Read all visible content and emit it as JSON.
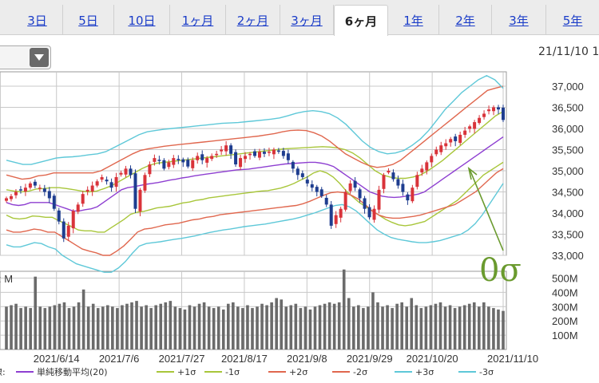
{
  "tabs": [
    {
      "label": "3日",
      "active": false
    },
    {
      "label": "5日",
      "active": false
    },
    {
      "label": "10日",
      "active": false
    },
    {
      "label": "1ヶ月",
      "active": false
    },
    {
      "label": "2ヶ月",
      "active": false
    },
    {
      "label": "3ヶ月",
      "active": false
    },
    {
      "label": "6ヶ月",
      "active": true
    },
    {
      "label": "1年",
      "active": false
    },
    {
      "label": "2年",
      "active": false
    },
    {
      "label": "3年",
      "active": false
    },
    {
      "label": "5年",
      "active": false
    }
  ],
  "date_stamp": "21/11/10 1",
  "volume_unit_label": ": M",
  "legend_prefix": "線:",
  "annotation": "0σ",
  "colors": {
    "up": "#d9333a",
    "down": "#1e3d8f",
    "sma": "#8e3fd1",
    "p1": "#a8c63a",
    "m1": "#a8c63a",
    "p2": "#e0674e",
    "m2": "#e0674e",
    "p3": "#5ec8d8",
    "m3": "#5ec8d8",
    "volume": "#6b6b6b",
    "grid": "#c8c8c8",
    "annotation": "#6a9a2e"
  },
  "chart_data": {
    "type": "candlestick",
    "price_ylim": [
      33000,
      37200
    ],
    "price_ticks": [
      "37,000",
      "36,500",
      "36,000",
      "35,500",
      "35,000",
      "34,500",
      "34,000",
      "33,500",
      "33,000"
    ],
    "price_tick_values": [
      37000,
      36500,
      36000,
      35500,
      35000,
      34500,
      34000,
      33500,
      33000
    ],
    "volume_ylim": [
      0,
      620
    ],
    "volume_ticks": [
      "500M",
      "400M",
      "300M",
      "200M",
      "100M"
    ],
    "volume_tick_values": [
      500,
      400,
      300,
      200,
      100
    ],
    "x_labels": [
      "2021/6/14",
      "2021/7/6",
      "2021/7/27",
      "2021/8/17",
      "2021/9/8",
      "2021/9/29",
      "2021/10/20",
      "2021/11/10"
    ],
    "x_label_index": [
      12,
      27,
      42,
      57,
      72,
      87,
      102,
      119
    ],
    "closes": [
      34350,
      34400,
      34500,
      34550,
      34600,
      34700,
      34650,
      34600,
      34500,
      34350,
      34100,
      33800,
      33400,
      33700,
      34050,
      34200,
      34450,
      34550,
      34650,
      34750,
      34850,
      34750,
      34600,
      34850,
      34950,
      35050,
      34900,
      34100,
      34550,
      34900,
      35150,
      35300,
      35250,
      35050,
      35200,
      35300,
      35250,
      35200,
      35100,
      35250,
      35350,
      35250,
      35300,
      35350,
      35400,
      35500,
      35600,
      35400,
      35150,
      35300,
      35350,
      35400,
      35350,
      35450,
      35400,
      35450,
      35500,
      35450,
      35350,
      35250,
      35050,
      34900,
      34850,
      34700,
      34600,
      34500,
      34400,
      34200,
      33700,
      33950,
      34100,
      34500,
      34700,
      34600,
      34350,
      34100,
      33900,
      34100,
      34550,
      34900,
      35000,
      34800,
      34650,
      34500,
      34300,
      34600,
      34900,
      35050,
      35200,
      35350,
      35500,
      35600,
      35650,
      35750,
      35700,
      35850,
      35950,
      36050,
      36150,
      36250,
      36350,
      36450,
      36500,
      36450,
      36200
    ],
    "volumes": [
      300,
      310,
      320,
      290,
      300,
      290,
      510,
      300,
      290,
      300,
      310,
      320,
      330,
      290,
      300,
      330,
      420,
      300,
      320,
      290,
      300,
      310,
      300,
      290,
      310,
      320,
      330,
      340,
      300,
      310,
      290,
      310,
      320,
      330,
      340,
      300,
      290,
      280,
      310,
      300,
      320,
      330,
      300,
      290,
      300,
      280,
      320,
      330,
      300,
      290,
      310,
      290,
      300,
      320,
      310,
      330,
      360,
      350,
      300,
      310,
      320,
      290,
      300,
      280,
      300,
      310,
      320,
      330,
      320,
      330,
      560,
      360,
      300,
      310,
      290,
      300,
      400,
      330,
      300,
      310,
      290,
      320,
      330,
      300,
      360,
      310,
      290,
      300,
      310,
      320,
      330,
      300,
      310,
      290,
      300,
      310,
      320,
      330,
      300,
      330,
      300,
      290,
      280,
      270
    ],
    "series": [
      {
        "name": "単純移動平均(20)",
        "key": "sma",
        "values": [
          34250,
          34200,
          34180,
          34200,
          34250,
          34250,
          34250,
          34250,
          34200,
          34150,
          34100,
          34050,
          34050,
          34080,
          34100,
          34150,
          34250,
          34350,
          34450,
          34550,
          34600,
          34620,
          34650,
          34680,
          34700,
          34720,
          34750,
          34780,
          34800,
          34830,
          34850,
          34880,
          34900,
          34920,
          34940,
          34960,
          34980,
          35000,
          35020,
          35030,
          35040,
          35060,
          35080,
          35100,
          35120,
          35140,
          35160,
          35170,
          35180,
          35190,
          35200,
          35200,
          35180,
          35150,
          35100,
          35000,
          34900,
          34800,
          34700,
          34600,
          34500,
          34450,
          34400,
          34380,
          34370,
          34380,
          34400,
          34420,
          34450,
          34500,
          34600,
          34700,
          34800,
          34900,
          35000,
          35100,
          35200,
          35300,
          35400,
          35500,
          35600,
          35700,
          35800
        ]
      },
      {
        "name": "+1σ",
        "key": "p1",
        "values": [
          34550,
          34520,
          34500,
          34520,
          34570,
          34580,
          34600,
          34600,
          34580,
          34550,
          34520,
          34500,
          34520,
          34580,
          34650,
          34750,
          34850,
          34950,
          35050,
          35130,
          35180,
          35200,
          35220,
          35240,
          35260,
          35280,
          35300,
          35320,
          35340,
          35360,
          35380,
          35400,
          35420,
          35440,
          35460,
          35480,
          35500,
          35520,
          35530,
          35540,
          35550,
          35560,
          35570,
          35560,
          35540,
          35500,
          35420,
          35300,
          35150,
          35000,
          34900,
          34850,
          34820,
          34820,
          34850,
          34900,
          35000,
          35120,
          35250,
          35400,
          35550,
          35700,
          35850,
          36000,
          36150,
          36300,
          36400
        ]
      },
      {
        "name": "-1σ",
        "key": "m1",
        "values": [
          33950,
          33880,
          33860,
          33880,
          33930,
          33920,
          33900,
          33900,
          33820,
          33750,
          33680,
          33600,
          33580,
          33580,
          33550,
          33550,
          33650,
          33750,
          33850,
          33970,
          34020,
          34040,
          34080,
          34120,
          34140,
          34160,
          34200,
          34240,
          34260,
          34300,
          34320,
          34360,
          34380,
          34400,
          34420,
          34440,
          34460,
          34480,
          34500,
          34520,
          34530,
          34560,
          34590,
          34640,
          34700,
          34780,
          34850,
          34950,
          35000,
          34950,
          34850,
          34700,
          34520,
          34380,
          34250,
          34150,
          34050,
          33950,
          33850,
          33780,
          33720,
          33700,
          33720,
          33760,
          33800,
          33900,
          34000,
          34100,
          34200,
          34300,
          34450,
          34600,
          34750,
          34900,
          35000,
          35100,
          35200
        ]
      },
      {
        "name": "+2σ",
        "key": "p2",
        "values": [
          34900,
          34850,
          34800,
          34820,
          34880,
          34900,
          34950,
          34950,
          34950,
          34950,
          34950,
          34950,
          35000,
          35100,
          35200,
          35300,
          35400,
          35480,
          35520,
          35550,
          35580,
          35600,
          35620,
          35640,
          35660,
          35680,
          35700,
          35720,
          35740,
          35760,
          35780,
          35800,
          35820,
          35850,
          35880,
          35920,
          35950,
          35960,
          35950,
          35900,
          35820,
          35700,
          35550,
          35400,
          35300,
          35200,
          35120,
          35080,
          35100,
          35150,
          35250,
          35400,
          35550,
          35700,
          35850,
          36000,
          36150,
          36300,
          36450,
          36600,
          36750,
          36900,
          36950,
          37000
        ]
      },
      {
        "name": "-2σ",
        "key": "m2",
        "values": [
          33600,
          33550,
          33550,
          33580,
          33620,
          33600,
          33550,
          33550,
          33450,
          33350,
          33250,
          33150,
          33100,
          33060,
          33000,
          33000,
          33100,
          33220,
          33380,
          33550,
          33620,
          33640,
          33680,
          33720,
          33740,
          33760,
          33800,
          33840,
          33860,
          33900,
          33920,
          33960,
          33980,
          34000,
          34020,
          34040,
          34060,
          34080,
          34100,
          34120,
          34140,
          34160,
          34180,
          34220,
          34280,
          34350,
          34420,
          34480,
          34500,
          34480,
          34420,
          34330,
          34200,
          34050,
          33950,
          33900,
          33880,
          33880,
          33900,
          33920,
          33950,
          34000,
          34050,
          34100,
          34150,
          34200,
          34300,
          34400,
          34500,
          34650,
          34800,
          34950,
          35050
        ]
      },
      {
        "name": "+3σ",
        "key": "p3",
        "values": [
          35250,
          35200,
          35150,
          35150,
          35200,
          35250,
          35300,
          35320,
          35330,
          35350,
          35380,
          35400,
          35450,
          35550,
          35650,
          35750,
          35850,
          35920,
          35950,
          35980,
          36000,
          36020,
          36040,
          36060,
          36080,
          36100,
          36120,
          36130,
          36140,
          36160,
          36180,
          36200,
          36220,
          36250,
          36300,
          36360,
          36400,
          36420,
          36400,
          36350,
          36250,
          36100,
          35900,
          35700,
          35550,
          35450,
          35400,
          35420,
          35480,
          35600,
          35750,
          35950,
          36200,
          36450,
          36650,
          36850,
          37000,
          37150,
          37250,
          37150,
          36950
        ]
      },
      {
        "name": "-3σ",
        "key": "m3",
        "values": [
          33250,
          33200,
          33200,
          33250,
          33300,
          33280,
          33200,
          33150,
          33000,
          32900,
          32800,
          32750,
          32700,
          32650,
          32600,
          32600,
          32700,
          32850,
          33050,
          33220,
          33280,
          33300,
          33320,
          33350,
          33380,
          33400,
          33430,
          33460,
          33500,
          33540,
          33570,
          33600,
          33620,
          33650,
          33680,
          33700,
          33720,
          33740,
          33770,
          33800,
          33830,
          33860,
          33900,
          33950,
          34000,
          34060,
          34120,
          34180,
          34200,
          34150,
          34050,
          33900,
          33750,
          33600,
          33500,
          33420,
          33380,
          33350,
          33320,
          33300,
          33300,
          33320,
          33350,
          33400,
          33450,
          33500,
          33600,
          33750,
          33950,
          34200,
          34450,
          34700
        ]
      }
    ]
  }
}
